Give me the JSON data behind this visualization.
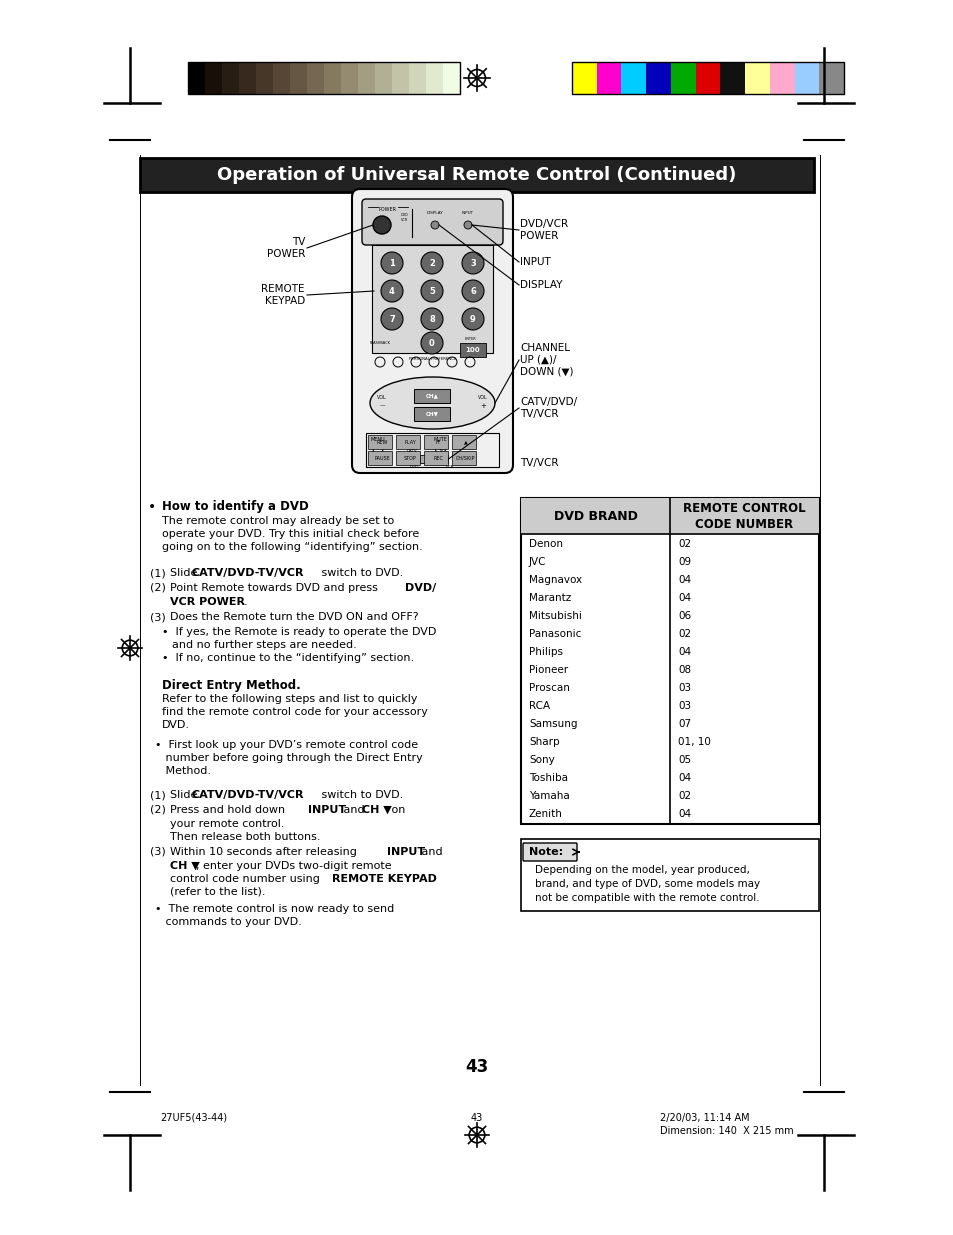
{
  "title": "Operation of Universal Remote Control (Continued)",
  "page_number": "43",
  "footer_left": "27UF5(43-44)",
  "footer_center": "43",
  "footer_right_line1": "2/20/03, 11:14 AM",
  "footer_right_line2": "Dimension: 140  X 215 mm",
  "bg_color": "#ffffff",
  "header_bar_colors_left": [
    "#000000",
    "#181008",
    "#271d13",
    "#37291e",
    "#473729",
    "#574636",
    "#665644",
    "#756752",
    "#857960",
    "#948b70",
    "#a39d82",
    "#b2b094",
    "#c2c3a7",
    "#d1d6bb",
    "#e1e9cf",
    "#f0fce3"
  ],
  "header_bar_colors_right": [
    "#ffff00",
    "#ff00cc",
    "#00ccff",
    "#0000bb",
    "#00aa00",
    "#dd0000",
    "#111111",
    "#ffff99",
    "#ffaacc",
    "#99ccff",
    "#888888"
  ],
  "dvd_brands": [
    "Denon",
    "JVC",
    "Magnavox",
    "Marantz",
    "Mitsubishi",
    "Panasonic",
    "Philips",
    "Pioneer",
    "Proscan",
    "RCA",
    "Samsung",
    "Sharp",
    "Sony",
    "Toshiba",
    "Yamaha",
    "Zenith"
  ],
  "dvd_codes": [
    "02",
    "09",
    "04",
    "04",
    "06",
    "02",
    "04",
    "08",
    "03",
    "03",
    "07",
    "01, 10",
    "05",
    "04",
    "02",
    "04"
  ],
  "table_header1": "DVD BRAND",
  "table_header2": "REMOTE CONTROL\nCODE NUMBER",
  "note_text_lines": [
    "Depending on the model, year produced,",
    "brand, and type of DVD, some models may",
    "not be compatible with the remote control."
  ]
}
